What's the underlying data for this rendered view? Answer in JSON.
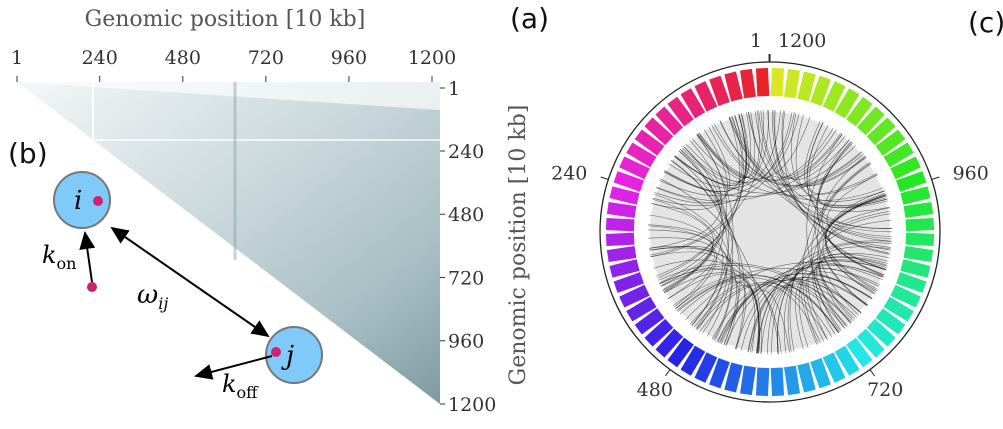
{
  "panels": {
    "a": {
      "label": "(a)",
      "x_axis": {
        "label": "Genomic position [10 kb]",
        "ticks": [
          1,
          240,
          480,
          720,
          960,
          1200
        ]
      },
      "y_axis": {
        "label": "Genomic position [10 kb]",
        "ticks": [
          1,
          240,
          480,
          720,
          960,
          1200
        ]
      }
    },
    "b": {
      "label": "(b)",
      "node_i": "i",
      "node_j": "j",
      "k_on": {
        "symbol": "k",
        "subscript": "on"
      },
      "omega": {
        "symbol": "ω",
        "subscript": "ij"
      },
      "k_off": {
        "symbol": "k",
        "subscript": "off"
      }
    },
    "c": {
      "label": "(c)",
      "ticks": [
        1,
        240,
        480,
        720,
        960,
        1200
      ]
    }
  }
}
